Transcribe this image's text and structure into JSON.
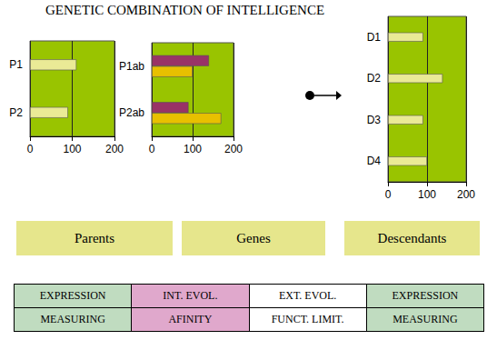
{
  "title": "GENETIC COMBINATION OF INTELLIGENCE",
  "chart_data": [
    {
      "type": "bar",
      "title": "Parents",
      "orientation": "horizontal",
      "categories": [
        "P1",
        "P2"
      ],
      "values": [
        110,
        90
      ],
      "color": "#eaea96",
      "xlim": [
        0,
        200
      ],
      "xticks": [
        0,
        100,
        200
      ],
      "grid": true
    },
    {
      "type": "bar",
      "title": "Genes",
      "orientation": "horizontal",
      "categories": [
        "P1ab",
        "P2ab"
      ],
      "series": [
        {
          "color": "#993366",
          "values": [
            140,
            90
          ]
        },
        {
          "color": "#e8c000",
          "values": [
            100,
            170
          ]
        }
      ],
      "xlim": [
        0,
        200
      ],
      "xticks": [
        0,
        100,
        200
      ],
      "grid": true
    },
    {
      "type": "bar",
      "title": "Descendants",
      "orientation": "horizontal",
      "categories": [
        "D1",
        "D2",
        "D3",
        "D4"
      ],
      "values": [
        90,
        140,
        90,
        100
      ],
      "color": "#eaea96",
      "xlim": [
        0,
        200
      ],
      "xticks": [
        0,
        100,
        200
      ],
      "grid": true
    }
  ],
  "table": {
    "rows": [
      [
        "EXPRESSION",
        "INT. EVOL.",
        "EXT. EVOL.",
        "EXPRESSION"
      ],
      [
        "MEASURING",
        "AFINITY",
        "FUNCT. LIMIT.",
        "MEASURING"
      ]
    ]
  }
}
